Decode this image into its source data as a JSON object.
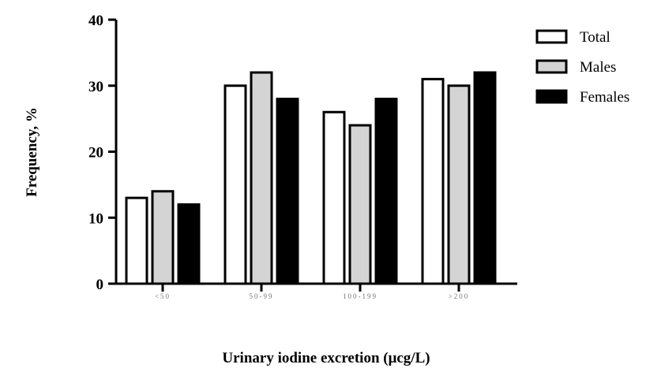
{
  "chart_data": {
    "type": "bar",
    "title": "",
    "xlabel": "Urinary iodine excretion (μcg/L)",
    "ylabel": "Frequency, %",
    "ylim": [
      0,
      40
    ],
    "yticks": [
      0,
      10,
      20,
      30,
      40
    ],
    "categories": [
      "<50",
      "50-99",
      "100-199",
      ">200"
    ],
    "series": [
      {
        "name": "Total",
        "values": [
          13,
          30,
          26,
          31
        ],
        "fill": "#ffffff"
      },
      {
        "name": "Males",
        "values": [
          14,
          32,
          24,
          30
        ],
        "fill": "#d4d4d4"
      },
      {
        "name": "Females",
        "values": [
          12,
          28,
          28,
          32
        ],
        "fill": "#000000"
      }
    ],
    "grid": false,
    "legend_position": "top-right"
  }
}
